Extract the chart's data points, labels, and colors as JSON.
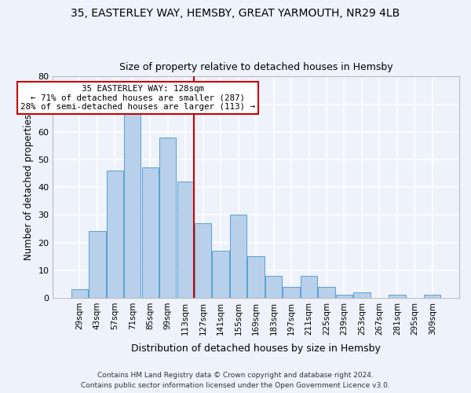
{
  "title_line1": "35, EASTERLEY WAY, HEMSBY, GREAT YARMOUTH, NR29 4LB",
  "title_line2": "Size of property relative to detached houses in Hemsby",
  "xlabel": "Distribution of detached houses by size in Hemsby",
  "ylabel": "Number of detached properties",
  "categories": [
    "29sqm",
    "43sqm",
    "57sqm",
    "71sqm",
    "85sqm",
    "99sqm",
    "113sqm",
    "127sqm",
    "141sqm",
    "155sqm",
    "169sqm",
    "183sqm",
    "197sqm",
    "211sqm",
    "225sqm",
    "239sqm",
    "253sqm",
    "267sqm",
    "281sqm",
    "295sqm",
    "309sqm"
  ],
  "values": [
    3,
    24,
    46,
    68,
    47,
    58,
    42,
    27,
    17,
    30,
    15,
    8,
    4,
    8,
    4,
    1,
    2,
    0,
    1,
    0,
    1
  ],
  "bar_color": "#b8d0ea",
  "bar_edge_color": "#5a9fd4",
  "annotation_text": "  35 EASTERLEY WAY: 128sqm\n← 71% of detached houses are smaller (287)\n28% of semi-detached houses are larger (113) →",
  "annotation_box_color": "#ffffff",
  "annotation_box_edge": "#cc0000",
  "line_color": "#cc0000",
  "ylim": [
    0,
    80
  ],
  "yticks": [
    0,
    10,
    20,
    30,
    40,
    50,
    60,
    70,
    80
  ],
  "footer_line1": "Contains HM Land Registry data © Crown copyright and database right 2024.",
  "footer_line2": "Contains public sector information licensed under the Open Government Licence v3.0.",
  "background_color": "#eef2fb",
  "grid_color": "#ffffff"
}
